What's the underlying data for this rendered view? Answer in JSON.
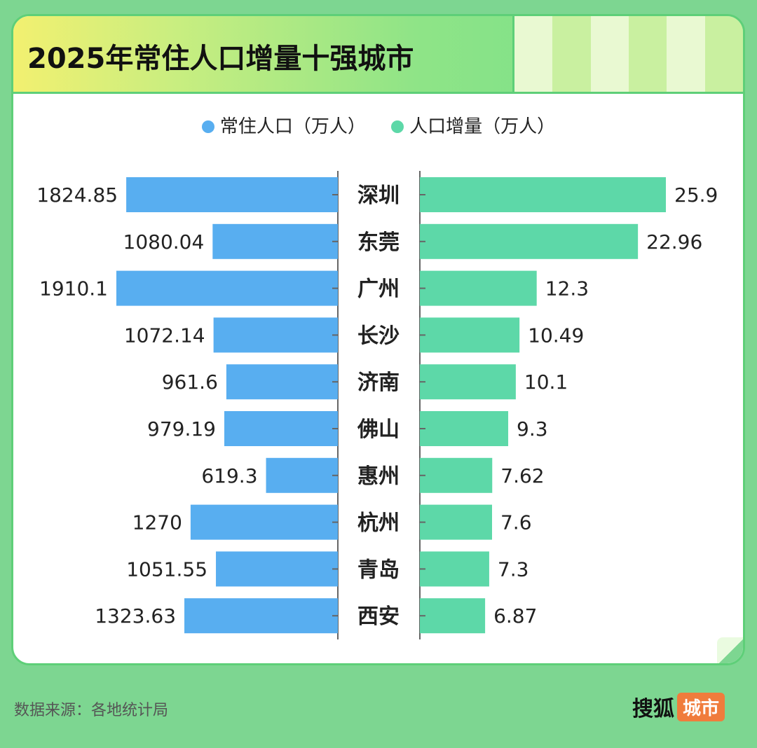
{
  "title": "2025年常住人口增量十强城市",
  "legend": [
    {
      "label": "常住人口（万人）",
      "color": "#58aef0"
    },
    {
      "label": "人口增量（万人）",
      "color": "#5dd8a8"
    }
  ],
  "source": "数据来源：各地统计局",
  "brand": {
    "name": "搜狐",
    "tag": "城市"
  },
  "chart_data": {
    "type": "bar",
    "categories": [
      "深圳",
      "东莞",
      "广州",
      "长沙",
      "济南",
      "佛山",
      "惠州",
      "杭州",
      "青岛",
      "西安"
    ],
    "series": [
      {
        "name": "常住人口（万人）",
        "values": [
          1824.85,
          1080.04,
          1910.1,
          1072.14,
          961.6,
          979.19,
          619.3,
          1270,
          1051.55,
          1323.63
        ],
        "labels": [
          "1824.85",
          "1080.04",
          "1910.1",
          "1072.14",
          "961.6",
          "979.19",
          "619.3",
          "1270",
          "1051.55",
          "1323.63"
        ],
        "color": "#58aef0"
      },
      {
        "name": "人口增量（万人）",
        "values": [
          25.9,
          22.96,
          12.3,
          10.49,
          10.1,
          9.3,
          7.62,
          7.6,
          7.3,
          6.87
        ],
        "labels": [
          "25.9",
          "22.96",
          "12.3",
          "10.49",
          "10.1",
          "9.3",
          "7.62",
          "7.6",
          "7.3",
          "6.87"
        ],
        "color": "#5dd8a8"
      }
    ],
    "legend_position": "top",
    "grid": false
  }
}
